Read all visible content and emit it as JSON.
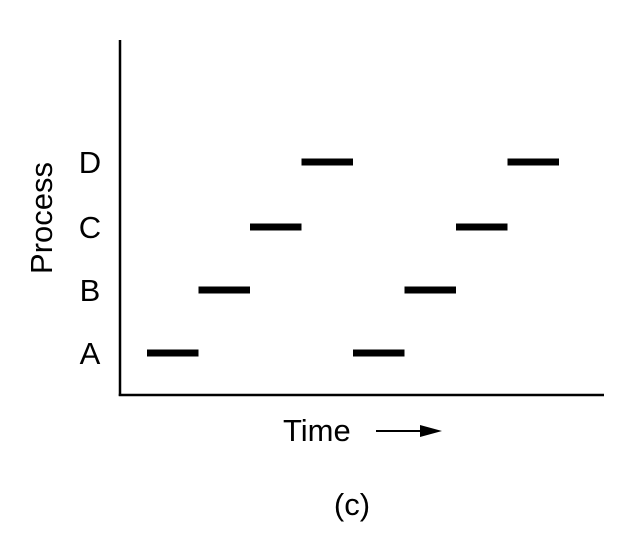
{
  "chart_data": {
    "type": "timeline",
    "ylabel": "Process",
    "xlabel": "Time",
    "caption": "(c)",
    "processes": [
      "A",
      "B",
      "C",
      "D"
    ],
    "segments": [
      {
        "process": "A",
        "start": 1,
        "end": 2
      },
      {
        "process": "B",
        "start": 2,
        "end": 3
      },
      {
        "process": "C",
        "start": 3,
        "end": 4
      },
      {
        "process": "D",
        "start": 4,
        "end": 5
      },
      {
        "process": "A",
        "start": 5,
        "end": 6
      },
      {
        "process": "B",
        "start": 6,
        "end": 7
      },
      {
        "process": "C",
        "start": 7,
        "end": 8
      },
      {
        "process": "D",
        "start": 8,
        "end": 9
      }
    ],
    "time_range": [
      0.5,
      9.5
    ],
    "color": "#000000"
  }
}
